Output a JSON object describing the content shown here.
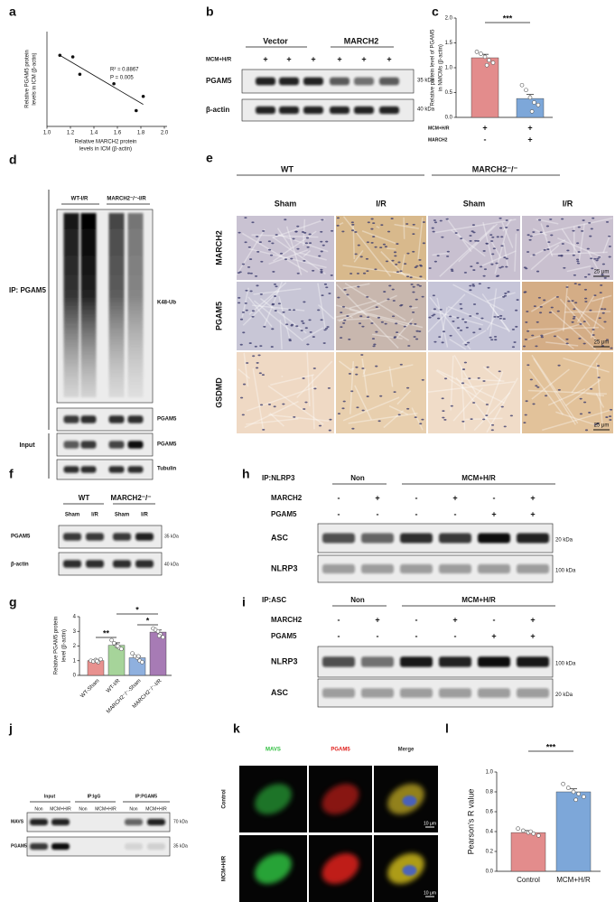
{
  "panel_labels": [
    "a",
    "b",
    "c",
    "d",
    "e",
    "f",
    "g",
    "h",
    "i",
    "j",
    "k",
    "l"
  ],
  "chart_data": [
    {
      "type": "scatter",
      "x": [
        1.11,
        1.22,
        1.28,
        1.57,
        1.76,
        1.82
      ],
      "y": [
        0.85,
        0.84,
        0.73,
        0.67,
        0.5,
        0.59
      ],
      "xlim": [
        1,
        2
      ],
      "xticks": [
        {
          "value": 1,
          "label": "1.0"
        },
        1.2,
        1.4,
        1.6,
        1.8,
        {
          "value": 2,
          "label": "2.0"
        }
      ],
      "ylim": [
        0.4,
        1
      ],
      "color": "#111111",
      "trendline": true,
      "xlabel": [
        "Relative MARCH2 protein",
        "levels in ICM (β-actin)"
      ],
      "ylabel": [
        "Relative PGAM5 protein",
        "levels in ICM (β-actin)"
      ],
      "annotations": [
        "R² = 0.8867",
        "P = 0.005"
      ]
    },
    {
      "type": "bar",
      "categories": [
        null,
        null
      ],
      "values": [
        1.2,
        0.38
      ],
      "errors": [
        0.07,
        0.08
      ],
      "colors": [
        "#e38c8c",
        "#7da7d9"
      ],
      "points": [
        [
          1.32,
          1.28,
          1.22,
          1.15,
          1.1,
          1.05
        ],
        [
          0.65,
          0.55,
          0.4,
          0.3,
          0.25,
          0.12
        ]
      ],
      "ylim": [
        0,
        2
      ],
      "yticks": [
        {
          "value": 0,
          "label": "0.0"
        },
        0.5,
        {
          "value": 1,
          "label": "1.0"
        },
        1.5,
        {
          "value": 2,
          "label": "2.0"
        }
      ],
      "ylabel": [
        "Relative protein level of PGAM5",
        "in NMCMs (β-actin)"
      ],
      "significance": [
        "***"
      ],
      "conditions": [
        {
          "label": "MCM+H/R",
          "marks": [
            "+",
            "+"
          ]
        },
        {
          "label": "MARCH2",
          "marks": [
            "-",
            "+"
          ]
        }
      ]
    },
    {
      "type": "bar",
      "categories": [
        "WT-Sham",
        "WT-I/R",
        "MARCH2⁻/⁻-Sham",
        "MARCH2⁻/⁻-I/R"
      ],
      "values": [
        1.0,
        2.05,
        1.2,
        2.95
      ],
      "errors": [
        0.04,
        0.17,
        0.1,
        0.14
      ],
      "colors": [
        "#e8918f",
        "#a6d49a",
        "#8fb0de",
        "#a77bb5"
      ],
      "points": [
        [
          1.0,
          0.95,
          1.05,
          0.9,
          1.1,
          0.98
        ],
        [
          2.4,
          2.2,
          2.0,
          1.9,
          1.8,
          2.0
        ],
        [
          1.5,
          1.3,
          1.2,
          1.0,
          0.9,
          1.3
        ],
        [
          3.2,
          3.1,
          3.0,
          2.8,
          2.6,
          2.7
        ]
      ],
      "ylim": [
        0,
        4
      ],
      "yticks": [
        0,
        1,
        2,
        3,
        4
      ],
      "ylabel": [
        "Relative PGAM5 protein",
        "level  (β-actin)"
      ],
      "significance": [
        "*",
        "*",
        "**"
      ]
    },
    {
      "type": "bar",
      "categories": [
        "Control",
        "MCM+H/R"
      ],
      "values": [
        0.39,
        0.8
      ],
      "errors": [
        0.02,
        0.03
      ],
      "colors": [
        "#e38c8c",
        "#7da7d9"
      ],
      "points": [
        [
          0.43,
          0.41,
          0.39,
          0.38,
          0.36,
          0.4
        ],
        [
          0.88,
          0.84,
          0.8,
          0.78,
          0.75,
          0.72
        ]
      ],
      "ylim": [
        0,
        1
      ],
      "yticks": [
        {
          "value": 0,
          "label": "0.0"
        },
        0.2,
        0.4,
        0.6,
        0.8,
        {
          "value": 1,
          "label": "1.0"
        }
      ],
      "ylabel": [
        "Pearson's R value"
      ],
      "significance": [
        "***"
      ]
    }
  ],
  "blot_b": {
    "groups": [
      "Vector",
      "MARCH2"
    ],
    "treatment": {
      "label": "MCM+H/R",
      "marks": [
        "+",
        "+",
        "+",
        "+",
        "+",
        "+"
      ]
    },
    "rows": [
      "PGAM5",
      "β-actin"
    ],
    "sizes": [
      "35 kDa",
      "40 kDa"
    ]
  },
  "blot_d": {
    "groups": [
      "WT-I/R",
      "MARCH2⁻/⁻-I/R"
    ],
    "ip": "IP: PGAM5",
    "input": "Input",
    "rows": [
      "K48-Ub",
      "PGAM5",
      "PGAM5",
      "Tubulin"
    ]
  },
  "ihc_e": {
    "groups": [
      "WT",
      "MARCH2⁻/⁻"
    ],
    "columns": [
      "Sham",
      "I/R",
      "Sham",
      "I/R"
    ],
    "rows": [
      "MARCH2",
      "PGAM5",
      "GSDMD"
    ],
    "scale_bars": [
      "25 μm",
      "25 μm",
      "25 μm"
    ]
  },
  "blot_f": {
    "groups": [
      "WT",
      "MARCH2⁻/⁻"
    ],
    "columns": [
      "Sham",
      "I/R",
      "Sham",
      "I/R"
    ],
    "rows": [
      "PGAM5",
      "β-actin"
    ],
    "sizes": [
      "35 kDa",
      "40 kDa"
    ]
  },
  "blot_h": {
    "ip": "IP:NLRP3",
    "groups": [
      "Non",
      "MCM+H/R"
    ],
    "conditions": [
      {
        "label": "MARCH2",
        "marks": [
          "-",
          "+",
          "-",
          "+",
          "-",
          "+"
        ]
      },
      {
        "label": "PGAM5",
        "marks": [
          "-",
          "-",
          "-",
          "-",
          "+",
          "+"
        ]
      }
    ],
    "rows": [
      "ASC",
      "NLRP3"
    ],
    "sizes": [
      "20 kDa",
      "100 kDa"
    ]
  },
  "blot_i": {
    "ip": "IP:ASC",
    "groups": [
      "Non",
      "MCM+H/R"
    ],
    "conditions": [
      {
        "label": "MARCH2",
        "marks": [
          "-",
          "+",
          "-",
          "+",
          "-",
          "+"
        ]
      },
      {
        "label": "PGAM5",
        "marks": [
          "-",
          "-",
          "-",
          "-",
          "+",
          "+"
        ]
      }
    ],
    "rows": [
      "NLRP3",
      "ASC"
    ],
    "sizes": [
      "100 kDa",
      "20 kDa"
    ]
  },
  "blot_j": {
    "groups": [
      "Input",
      "IP:IgG",
      "IP:PGAM5"
    ],
    "columns": [
      "Non",
      "MCM+H/R",
      "Non",
      "MCM+H/R",
      "Non",
      "MCM+H/R"
    ],
    "rows": [
      "MAVS",
      "PGAM5"
    ],
    "sizes": [
      "70 kDa",
      "35 kDa"
    ]
  },
  "if_k": {
    "columns": [
      "MAVS",
      "PGAM5",
      "Merge"
    ],
    "rows": [
      "Control",
      "MCM+H/R"
    ],
    "scale_bars": [
      "10 μm",
      "10 μm"
    ]
  }
}
